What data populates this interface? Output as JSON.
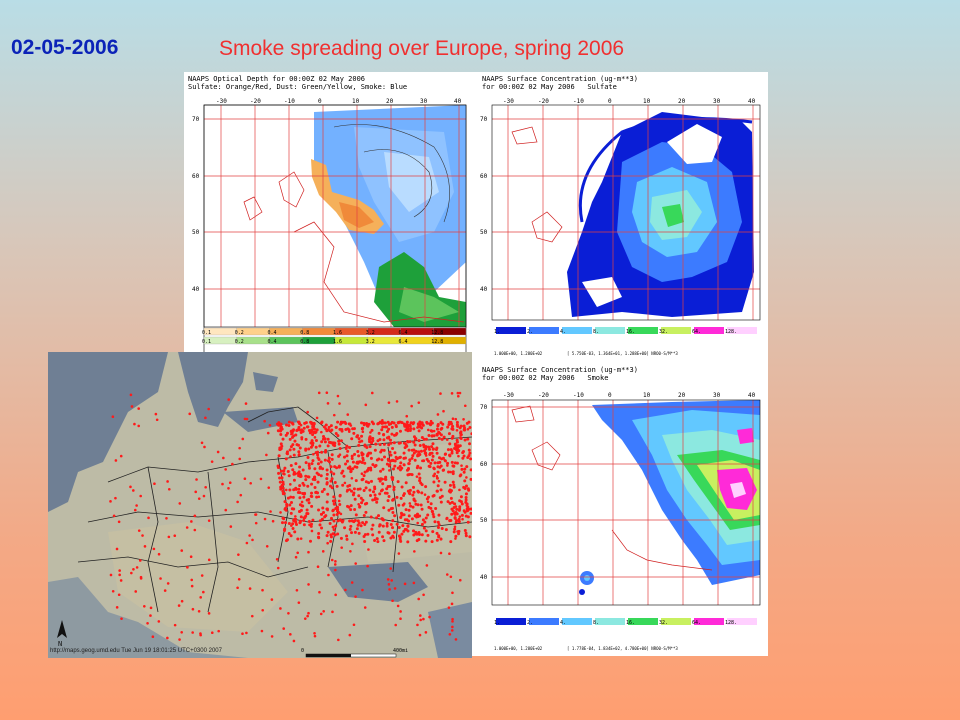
{
  "date": "02-05-2006",
  "title": "Smoke spreading over Europe, spring 2006",
  "aod_panel": {
    "header_line1": "NAAPS Optical Depth for 00:00Z 02 May 2006",
    "header_line2": "Sulfate: Orange/Red, Dust: Green/Yellow, Smoke: Blue",
    "lon_ticks": [
      "-30",
      "-20",
      "-10",
      "0",
      "10",
      "20",
      "30",
      "40"
    ],
    "lat_ticks": [
      "70",
      "60",
      "50",
      "40"
    ],
    "legend_row1": [
      "0.1",
      "0.2",
      "0.4",
      "0.8",
      "1.6",
      "3.2",
      "6.4",
      "12.8"
    ],
    "legend_row2": [
      "0.1",
      "0.2",
      "0.4",
      "0.8",
      "1.6",
      "3.2",
      "6.4",
      "12.8"
    ],
    "legend_row1_colors": [
      "#ffe6bf",
      "#ffd08a",
      "#f5b05a",
      "#f08a3a",
      "#e85a2a",
      "#d42a1a",
      "#b80f0f",
      "#8a0000"
    ],
    "legend_row2_colors": [
      "#d7f0c0",
      "#a8e08a",
      "#5cc45c",
      "#1ea03a",
      "#c6e83a",
      "#e8e83a",
      "#f0d21e",
      "#e0b000"
    ]
  },
  "sulfate_panel": {
    "header_line1": "NAAPS Surface Concentration (ug-m**3)",
    "header_line2": "for 00:00Z 02 May 2006   Sulfate",
    "lon_ticks": [
      "-30",
      "-20",
      "-10",
      "0",
      "10",
      "20",
      "30",
      "40"
    ],
    "lat_ticks": [
      "70",
      "60",
      "50",
      "40"
    ],
    "legend": [
      "1.",
      "2.",
      "4.",
      "8.",
      "16.",
      "32.",
      "64.",
      "128."
    ],
    "footer_left": "1.000E+00, 1.280E+02",
    "footer_right": "[ 5.750E-03, 1.364E+01, 1.288E+00] NRO0-S/M**3"
  },
  "smoke_panel": {
    "header_line1": "NAAPS Surface Concentration (ug-m**3)",
    "header_line2": "for 00:00Z 02 May 2006   Smoke",
    "lon_ticks": [
      "-30",
      "-20",
      "-10",
      "0",
      "10",
      "20",
      "30",
      "40"
    ],
    "lat_ticks": [
      "70",
      "60",
      "50",
      "40"
    ],
    "legend": [
      "1.",
      "2.",
      "4.",
      "8.",
      "16.",
      "32.",
      "64.",
      "128."
    ],
    "footer_left": "1.000E+00, 1.280E+02",
    "footer_right": "[ 1.778E-04, 1.834E+02, 4.780E+00] NRO0-S/M**3"
  },
  "legend_colors": [
    "#0a1ed6",
    "#3c7bff",
    "#62c8ff",
    "#8ce8e0",
    "#38d85a",
    "#c8f060",
    "#ff2ad8",
    "#ffd0ff"
  ],
  "fire_map": {
    "credit": "http://maps.geog.umd.edu Tue Jun 19 18:01:25 UTC+0300 2007",
    "scale_start": "0",
    "scale_end": "400mi",
    "north_label": "N"
  }
}
